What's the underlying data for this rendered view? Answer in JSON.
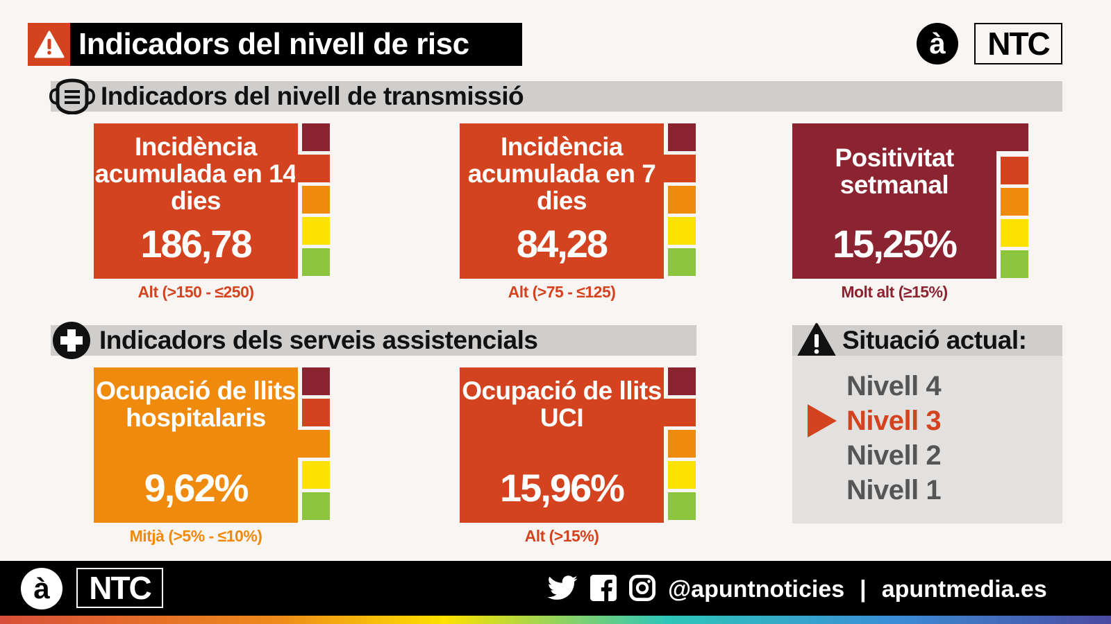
{
  "header": {
    "title": "Indicadors del nivell de risc",
    "logo_letter": "à",
    "logo_text": "NTC"
  },
  "colors": {
    "molt_alt": "#8b2330",
    "alt": "#d4431f",
    "mitja": "#ef8a0c",
    "baix": "#fde100",
    "nou_normal": "#8cc63f"
  },
  "transmission": {
    "title": "Indicadors del nivell de transmissió",
    "icon": "mask-icon",
    "cards": [
      {
        "name": "Incidència acumulada en 14 dies",
        "value": "186,78",
        "level_label": "Alt (>150 - ≤250)",
        "level": 1
      },
      {
        "name": "Incidència acumulada en 7 dies",
        "value": "84,28",
        "level_label": "Alt (>75 - ≤125)",
        "level": 1
      },
      {
        "name": "Positivitat setmanal",
        "value": "15,25%",
        "level_label": "Molt alt (≥15%)",
        "level": 0
      }
    ]
  },
  "services": {
    "title": "Indicadors dels serveis assistencials",
    "icon": "plus-icon",
    "cards": [
      {
        "name": "Ocupació de llits hospitalaris",
        "value": "9,62%",
        "level_label": "Mitjà (>5% - ≤10%)",
        "level": 2
      },
      {
        "name": "Ocupació de llits UCI",
        "value": "15,96%",
        "level_label": "Alt (>15%)",
        "level": 1
      }
    ]
  },
  "situation": {
    "title": "Situació actual:",
    "levels": [
      "Nivell 4",
      "Nivell 3",
      "Nivell 2",
      "Nivell 1"
    ],
    "current_index": 1
  },
  "footer": {
    "logo_letter": "à",
    "logo_text": "NTC",
    "handle": "@apuntnoticies",
    "separator": "|",
    "website": "apuntmedia.es"
  }
}
